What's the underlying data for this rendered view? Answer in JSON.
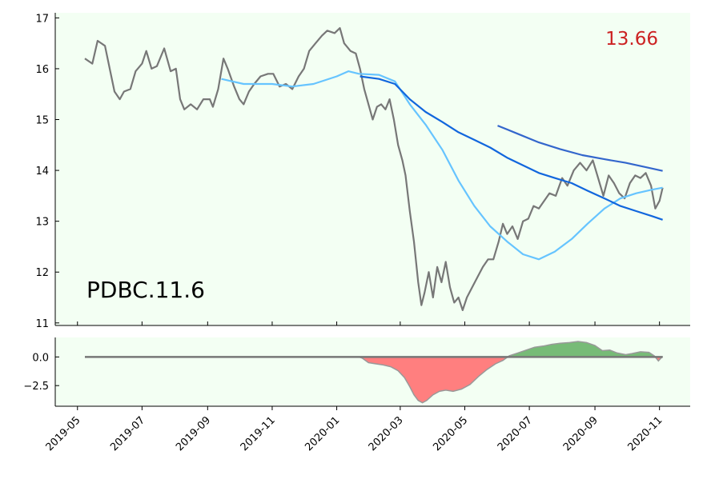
{
  "chart_data": [
    {
      "type": "line",
      "title": "",
      "xlabel": "",
      "ylabel": "",
      "ylim": [
        10.95,
        17.1
      ],
      "xlim": [
        "2019-04-10",
        "2020-11-30"
      ],
      "grid": false,
      "background": "#f3fff3",
      "annotations": [
        {
          "text": "PDBC.11.6",
          "color": "#000000",
          "position": "lower-left"
        },
        {
          "text": "13.66",
          "color": "#cc2222",
          "position": "upper-right"
        }
      ],
      "x_ticks": [
        "2019-05",
        "2019-07",
        "2019-09",
        "2019-11",
        "2020-01",
        "2020-03",
        "2020-05",
        "2020-07",
        "2020-09",
        "2020-11"
      ],
      "y_ticks": [
        "11",
        "12",
        "13",
        "14",
        "15",
        "16",
        "17"
      ],
      "series": [
        {
          "color": "#777777",
          "points": [
            [
              "2019-05-08",
              16.2
            ],
            [
              "2019-05-15",
              16.1
            ],
            [
              "2019-05-20",
              16.55
            ],
            [
              "2019-05-27",
              16.45
            ],
            [
              "2019-06-01",
              15.95
            ],
            [
              "2019-06-05",
              15.55
            ],
            [
              "2019-06-10",
              15.4
            ],
            [
              "2019-06-14",
              15.55
            ],
            [
              "2019-06-20",
              15.6
            ],
            [
              "2019-06-25",
              15.95
            ],
            [
              "2019-07-01",
              16.1
            ],
            [
              "2019-07-05",
              16.35
            ],
            [
              "2019-07-10",
              16.0
            ],
            [
              "2019-07-15",
              16.05
            ],
            [
              "2019-07-22",
              16.4
            ],
            [
              "2019-07-28",
              15.95
            ],
            [
              "2019-08-02",
              16.0
            ],
            [
              "2019-08-06",
              15.4
            ],
            [
              "2019-08-10",
              15.2
            ],
            [
              "2019-08-16",
              15.3
            ],
            [
              "2019-08-22",
              15.2
            ],
            [
              "2019-08-28",
              15.4
            ],
            [
              "2019-09-03",
              15.4
            ],
            [
              "2019-09-06",
              15.25
            ],
            [
              "2019-09-11",
              15.6
            ],
            [
              "2019-09-16",
              16.2
            ],
            [
              "2019-09-20",
              16.0
            ],
            [
              "2019-09-26",
              15.65
            ],
            [
              "2019-10-01",
              15.4
            ],
            [
              "2019-10-05",
              15.3
            ],
            [
              "2019-10-10",
              15.55
            ],
            [
              "2019-10-15",
              15.7
            ],
            [
              "2019-10-21",
              15.85
            ],
            [
              "2019-10-28",
              15.9
            ],
            [
              "2019-11-02",
              15.9
            ],
            [
              "2019-11-08",
              15.65
            ],
            [
              "2019-11-14",
              15.7
            ],
            [
              "2019-11-20",
              15.6
            ],
            [
              "2019-11-26",
              15.85
            ],
            [
              "2019-12-01",
              16.0
            ],
            [
              "2019-12-06",
              16.35
            ],
            [
              "2019-12-12",
              16.5
            ],
            [
              "2019-12-18",
              16.65
            ],
            [
              "2019-12-23",
              16.75
            ],
            [
              "2019-12-30",
              16.7
            ],
            [
              "2020-01-04",
              16.8
            ],
            [
              "2020-01-08",
              16.5
            ],
            [
              "2020-01-14",
              16.35
            ],
            [
              "2020-01-19",
              16.3
            ],
            [
              "2020-01-23",
              16.0
            ],
            [
              "2020-01-27",
              15.6
            ],
            [
              "2020-01-31",
              15.3
            ],
            [
              "2020-02-04",
              15.0
            ],
            [
              "2020-02-08",
              15.25
            ],
            [
              "2020-02-12",
              15.3
            ],
            [
              "2020-02-16",
              15.2
            ],
            [
              "2020-02-20",
              15.4
            ],
            [
              "2020-02-24",
              15.0
            ],
            [
              "2020-02-28",
              14.5
            ],
            [
              "2020-03-03",
              14.2
            ],
            [
              "2020-03-06",
              13.9
            ],
            [
              "2020-03-10",
              13.2
            ],
            [
              "2020-03-14",
              12.6
            ],
            [
              "2020-03-18",
              11.8
            ],
            [
              "2020-03-21",
              11.35
            ],
            [
              "2020-03-24",
              11.6
            ],
            [
              "2020-03-28",
              12.0
            ],
            [
              "2020-04-01",
              11.5
            ],
            [
              "2020-04-05",
              12.1
            ],
            [
              "2020-04-09",
              11.8
            ],
            [
              "2020-04-13",
              12.2
            ],
            [
              "2020-04-17",
              11.7
            ],
            [
              "2020-04-21",
              11.4
            ],
            [
              "2020-04-25",
              11.5
            ],
            [
              "2020-04-29",
              11.25
            ],
            [
              "2020-05-03",
              11.5
            ],
            [
              "2020-05-08",
              11.7
            ],
            [
              "2020-05-13",
              11.9
            ],
            [
              "2020-05-18",
              12.1
            ],
            [
              "2020-05-23",
              12.25
            ],
            [
              "2020-05-28",
              12.25
            ],
            [
              "2020-06-02",
              12.6
            ],
            [
              "2020-06-06",
              12.95
            ],
            [
              "2020-06-10",
              12.75
            ],
            [
              "2020-06-15",
              12.9
            ],
            [
              "2020-06-20",
              12.65
            ],
            [
              "2020-06-25",
              13.0
            ],
            [
              "2020-06-30",
              13.05
            ],
            [
              "2020-07-05",
              13.3
            ],
            [
              "2020-07-10",
              13.25
            ],
            [
              "2020-07-15",
              13.4
            ],
            [
              "2020-07-20",
              13.55
            ],
            [
              "2020-07-26",
              13.5
            ],
            [
              "2020-08-01",
              13.85
            ],
            [
              "2020-08-06",
              13.7
            ],
            [
              "2020-08-12",
              14.0
            ],
            [
              "2020-08-18",
              14.15
            ],
            [
              "2020-08-24",
              14.0
            ],
            [
              "2020-08-30",
              14.2
            ],
            [
              "2020-09-04",
              13.85
            ],
            [
              "2020-09-09",
              13.5
            ],
            [
              "2020-09-14",
              13.9
            ],
            [
              "2020-09-19",
              13.75
            ],
            [
              "2020-09-24",
              13.55
            ],
            [
              "2020-09-29",
              13.45
            ],
            [
              "2020-10-04",
              13.75
            ],
            [
              "2020-10-09",
              13.9
            ],
            [
              "2020-10-14",
              13.85
            ],
            [
              "2020-10-19",
              13.95
            ],
            [
              "2020-10-24",
              13.7
            ],
            [
              "2020-10-28",
              13.25
            ],
            [
              "2020-11-01",
              13.4
            ],
            [
              "2020-11-04",
              13.66
            ]
          ]
        },
        {
          "color": "#66c4ff",
          "points": [
            [
              "2019-09-14",
              15.8
            ],
            [
              "2019-10-05",
              15.7
            ],
            [
              "2019-11-01",
              15.7
            ],
            [
              "2019-11-20",
              15.65
            ],
            [
              "2019-12-10",
              15.7
            ],
            [
              "2020-01-01",
              15.85
            ],
            [
              "2020-01-12",
              15.95
            ],
            [
              "2020-01-22",
              15.9
            ],
            [
              "2020-02-10",
              15.88
            ],
            [
              "2020-02-25",
              15.75
            ],
            [
              "2020-03-10",
              15.3
            ],
            [
              "2020-03-25",
              14.9
            ],
            [
              "2020-04-10",
              14.4
            ],
            [
              "2020-04-25",
              13.8
            ],
            [
              "2020-05-10",
              13.3
            ],
            [
              "2020-05-25",
              12.9
            ],
            [
              "2020-06-10",
              12.6
            ],
            [
              "2020-06-25",
              12.35
            ],
            [
              "2020-07-10",
              12.25
            ],
            [
              "2020-07-25",
              12.4
            ],
            [
              "2020-08-10",
              12.65
            ],
            [
              "2020-08-25",
              12.95
            ],
            [
              "2020-09-10",
              13.25
            ],
            [
              "2020-09-25",
              13.45
            ],
            [
              "2020-10-10",
              13.55
            ],
            [
              "2020-10-25",
              13.62
            ],
            [
              "2020-11-04",
              13.66
            ]
          ]
        },
        {
          "color": "#1166dd",
          "points": [
            [
              "2020-01-23",
              15.85
            ],
            [
              "2020-02-10",
              15.8
            ],
            [
              "2020-02-25",
              15.7
            ],
            [
              "2020-03-10",
              15.4
            ],
            [
              "2020-03-25",
              15.15
            ],
            [
              "2020-04-10",
              14.95
            ],
            [
              "2020-04-25",
              14.75
            ],
            [
              "2020-05-10",
              14.6
            ],
            [
              "2020-05-25",
              14.45
            ],
            [
              "2020-06-10",
              14.25
            ],
            [
              "2020-06-25",
              14.1
            ],
            [
              "2020-07-10",
              13.95
            ],
            [
              "2020-07-25",
              13.85
            ],
            [
              "2020-08-10",
              13.75
            ],
            [
              "2020-08-25",
              13.6
            ],
            [
              "2020-09-10",
              13.45
            ],
            [
              "2020-09-25",
              13.3
            ],
            [
              "2020-10-10",
              13.2
            ],
            [
              "2020-10-25",
              13.1
            ],
            [
              "2020-11-04",
              13.03
            ]
          ]
        },
        {
          "color": "#3366cc",
          "points": [
            [
              "2020-06-01",
              14.88
            ],
            [
              "2020-06-20",
              14.72
            ],
            [
              "2020-07-10",
              14.55
            ],
            [
              "2020-07-30",
              14.42
            ],
            [
              "2020-08-20",
              14.3
            ],
            [
              "2020-09-10",
              14.22
            ],
            [
              "2020-09-30",
              14.15
            ],
            [
              "2020-10-20",
              14.06
            ],
            [
              "2020-11-04",
              13.99
            ]
          ]
        }
      ]
    },
    {
      "type": "area",
      "title": "",
      "xlabel": "",
      "ylabel": "",
      "ylim": [
        -4.3,
        1.7
      ],
      "y_ticks": [
        "0.0",
        "−2.5"
      ],
      "background": "#f3fff3",
      "colors": {
        "positive": "#77bb77",
        "negative": "#ff7f7f",
        "line": "#777777",
        "edge": "#999999"
      },
      "series": [
        {
          "points": [
            [
              "2019-05-08",
              0.0
            ],
            [
              "2020-01-22",
              0.0
            ],
            [
              "2020-01-25",
              -0.1
            ],
            [
              "2020-01-31",
              -0.5
            ],
            [
              "2020-02-07",
              -0.6
            ],
            [
              "2020-02-14",
              -0.7
            ],
            [
              "2020-02-21",
              -0.85
            ],
            [
              "2020-02-28",
              -1.2
            ],
            [
              "2020-03-05",
              -1.8
            ],
            [
              "2020-03-10",
              -2.6
            ],
            [
              "2020-03-14",
              -3.3
            ],
            [
              "2020-03-18",
              -3.8
            ],
            [
              "2020-03-22",
              -4.0
            ],
            [
              "2020-03-26",
              -3.8
            ],
            [
              "2020-04-01",
              -3.3
            ],
            [
              "2020-04-07",
              -3.0
            ],
            [
              "2020-04-13",
              -2.9
            ],
            [
              "2020-04-20",
              -3.0
            ],
            [
              "2020-04-28",
              -2.8
            ],
            [
              "2020-05-06",
              -2.4
            ],
            [
              "2020-05-14",
              -1.7
            ],
            [
              "2020-05-22",
              -1.1
            ],
            [
              "2020-05-30",
              -0.6
            ],
            [
              "2020-06-06",
              -0.3
            ],
            [
              "2020-06-12",
              0.1
            ],
            [
              "2020-06-20",
              0.35
            ],
            [
              "2020-06-28",
              0.6
            ],
            [
              "2020-07-06",
              0.85
            ],
            [
              "2020-07-14",
              0.95
            ],
            [
              "2020-07-22",
              1.1
            ],
            [
              "2020-07-30",
              1.2
            ],
            [
              "2020-08-08",
              1.25
            ],
            [
              "2020-08-16",
              1.35
            ],
            [
              "2020-08-24",
              1.25
            ],
            [
              "2020-09-01",
              1.0
            ],
            [
              "2020-09-08",
              0.55
            ],
            [
              "2020-09-15",
              0.6
            ],
            [
              "2020-09-22",
              0.35
            ],
            [
              "2020-09-30",
              0.2
            ],
            [
              "2020-10-06",
              0.3
            ],
            [
              "2020-10-14",
              0.45
            ],
            [
              "2020-10-22",
              0.4
            ],
            [
              "2020-10-27",
              0.1
            ],
            [
              "2020-10-31",
              -0.35
            ],
            [
              "2020-11-04",
              0.05
            ]
          ]
        }
      ]
    }
  ]
}
